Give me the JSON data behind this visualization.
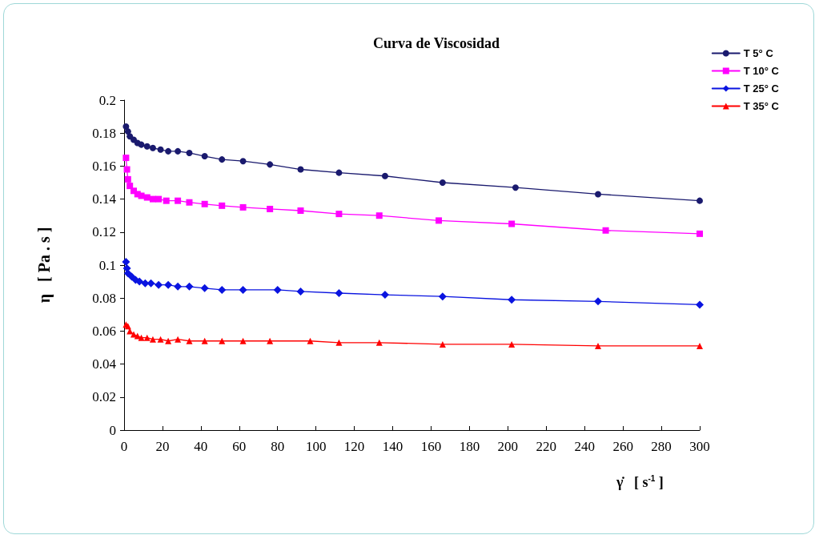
{
  "chart_data": {
    "type": "line",
    "title": "Curva de Viscosidad",
    "xlabel": "γ̇   [ s$^{-1}$ ]",
    "ylabel": "η   [ Pa . s ]",
    "xlim": [
      0,
      300
    ],
    "xticks": [
      0,
      20,
      40,
      60,
      80,
      100,
      120,
      140,
      160,
      180,
      200,
      220,
      240,
      260,
      280,
      300
    ],
    "ylim": [
      0,
      0.2
    ],
    "yticks": [
      0,
      0.02,
      0.04,
      0.06,
      0.08,
      0.1,
      0.12,
      0.14,
      0.16,
      0.18,
      0.2
    ],
    "grid": false,
    "legend": "top right",
    "line_style": "solid",
    "series": [
      {
        "name": "T 5° C",
        "color": "#1a1a6e",
        "marker": "circle",
        "x": [
          1,
          2,
          3,
          5,
          7,
          9,
          12,
          15,
          19,
          23,
          28,
          34,
          42,
          51,
          62,
          76,
          92,
          112,
          136,
          166,
          204,
          247,
          300
        ],
        "values": [
          0.184,
          0.181,
          0.178,
          0.176,
          0.174,
          0.173,
          0.172,
          0.171,
          0.17,
          0.169,
          0.169,
          0.168,
          0.166,
          0.164,
          0.163,
          0.161,
          0.158,
          0.156,
          0.154,
          0.15,
          0.147,
          0.143,
          0.139
        ]
      },
      {
        "name": "T 10° C",
        "color": "#ff00ff",
        "marker": "square",
        "x": [
          1,
          1.5,
          2,
          3,
          5,
          7,
          9,
          12,
          15,
          18,
          22,
          28,
          34,
          42,
          51,
          62,
          76,
          92,
          112,
          133,
          164,
          202,
          251,
          300
        ],
        "values": [
          0.165,
          0.158,
          0.152,
          0.148,
          0.145,
          0.143,
          0.142,
          0.141,
          0.14,
          0.14,
          0.139,
          0.139,
          0.138,
          0.137,
          0.136,
          0.135,
          0.134,
          0.133,
          0.131,
          0.13,
          0.127,
          0.125,
          0.121,
          0.119
        ]
      },
      {
        "name": "T 25° C",
        "color": "#0a14e0",
        "marker": "diamond",
        "x": [
          1,
          1.5,
          2,
          4,
          6,
          8,
          11,
          14,
          18,
          23,
          28,
          34,
          42,
          51,
          62,
          80,
          92,
          112,
          136,
          166,
          202,
          247,
          300
        ],
        "values": [
          0.102,
          0.098,
          0.095,
          0.093,
          0.091,
          0.09,
          0.089,
          0.089,
          0.088,
          0.088,
          0.087,
          0.087,
          0.086,
          0.085,
          0.085,
          0.085,
          0.084,
          0.083,
          0.082,
          0.081,
          0.079,
          0.078,
          0.076
        ]
      },
      {
        "name": "T 35° C",
        "color": "#ff0000",
        "marker": "triangle",
        "x": [
          1,
          2,
          3,
          5,
          7,
          9,
          12,
          15,
          19,
          23,
          28,
          34,
          42,
          51,
          62,
          76,
          97,
          112,
          133,
          166,
          202,
          247,
          300
        ],
        "values": [
          0.064,
          0.063,
          0.06,
          0.058,
          0.057,
          0.056,
          0.056,
          0.055,
          0.055,
          0.054,
          0.055,
          0.054,
          0.054,
          0.054,
          0.054,
          0.054,
          0.054,
          0.053,
          0.053,
          0.052,
          0.052,
          0.051,
          0.051
        ]
      }
    ]
  }
}
